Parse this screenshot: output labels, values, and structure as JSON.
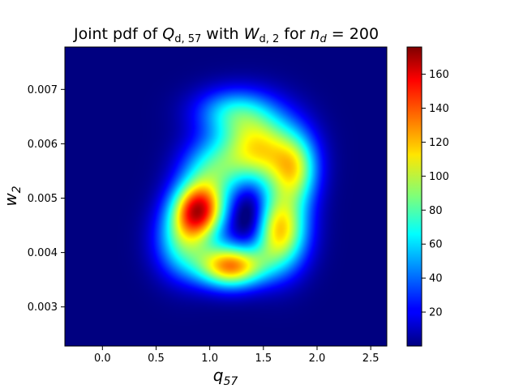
{
  "chart_data": {
    "type": "heatmap",
    "title_parts": {
      "prefix": "Joint pdf of ",
      "q_var": "Q",
      "q_sub": "d, 57",
      "mid": " with ",
      "w_var": "W",
      "w_sub": "d, 2",
      "mid2": " for ",
      "n_var": "n",
      "n_sub": "d",
      "suffix": " = 200"
    },
    "xlabel": {
      "var": "q",
      "sub": "57"
    },
    "ylabel": {
      "var": "w",
      "sub": "2"
    },
    "xlim": [
      -0.35,
      2.65
    ],
    "ylim": [
      0.00228,
      0.00778
    ],
    "xticks": [
      0.0,
      0.5,
      1.0,
      1.5,
      2.0,
      2.5
    ],
    "xtick_labels": [
      "0.0",
      "0.5",
      "1.0",
      "1.5",
      "2.0",
      "2.5"
    ],
    "yticks": [
      0.003,
      0.004,
      0.005,
      0.006,
      0.007
    ],
    "ytick_labels": [
      "0.003",
      "0.004",
      "0.005",
      "0.006",
      "0.007"
    ],
    "colormap": "jet",
    "colorbar": {
      "min": 0,
      "max": 176,
      "ticks": [
        20,
        40,
        60,
        80,
        100,
        120,
        140,
        160
      ],
      "tick_labels": [
        "20",
        "40",
        "60",
        "80",
        "100",
        "120",
        "140",
        "160"
      ]
    },
    "density_components": [
      {
        "x": 0.9,
        "y": 0.00478,
        "sx": 0.17,
        "sy": 0.00036,
        "w": 1.0
      },
      {
        "x": 1.2,
        "y": 0.00375,
        "sx": 0.22,
        "sy": 0.00028,
        "w": 0.95
      },
      {
        "x": 1.65,
        "y": 0.0044,
        "sx": 0.18,
        "sy": 0.0005,
        "w": 0.85
      },
      {
        "x": 1.45,
        "y": 0.0059,
        "sx": 0.26,
        "sy": 0.0005,
        "w": 0.8
      },
      {
        "x": 1.8,
        "y": 0.0055,
        "sx": 0.15,
        "sy": 0.00045,
        "w": 0.55
      },
      {
        "x": 0.75,
        "y": 0.0042,
        "sx": 0.18,
        "sy": 0.00045,
        "w": 0.5
      },
      {
        "x": 1.2,
        "y": 0.0066,
        "sx": 0.25,
        "sy": 0.0003,
        "w": 0.35
      },
      {
        "x": 1.0,
        "y": 0.0055,
        "sx": 0.2,
        "sy": 0.0004,
        "w": 0.4
      }
    ],
    "density_hole": {
      "x": 1.38,
      "y": 0.0047,
      "sx": 0.12,
      "sy": 0.00045,
      "w": 0.28
    },
    "density_peak": 170
  }
}
